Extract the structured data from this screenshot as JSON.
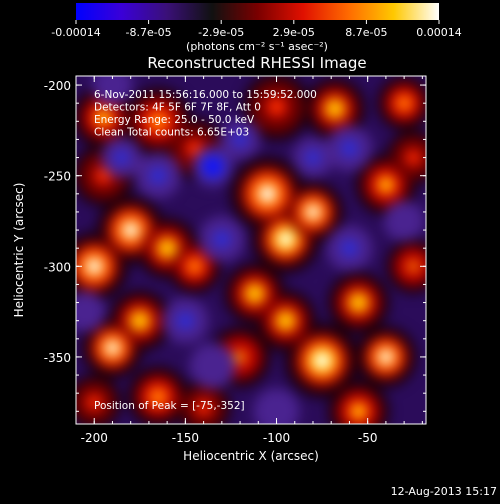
{
  "colorbar": {
    "tick_labels": [
      "-0.00014",
      "-8.7e-05",
      "-2.9e-05",
      "2.9e-05",
      "8.7e-05",
      "0.00014"
    ],
    "unit_label": "(photons cm⁻² s⁻¹ asec⁻²)",
    "colors": [
      "#0000ff",
      "#3a00d8",
      "#3a1078",
      "#111111",
      "#7a0000",
      "#e01000",
      "#ff6a00",
      "#ffc800",
      "#ffffff"
    ]
  },
  "chart_data": {
    "type": "heatmap",
    "title": "Reconstructed RHESSI Image",
    "xlabel": "Heliocentric X (arcsec)",
    "ylabel": "Heliocentric Y (arcsec)",
    "xlim": [
      -210,
      -18
    ],
    "ylim": [
      -387,
      -195
    ],
    "xticks": [
      -200,
      -150,
      -100,
      -50
    ],
    "yticks": [
      -200,
      -250,
      -300,
      -350
    ],
    "colorbar_range": [
      -0.00014,
      0.00014
    ],
    "annotations": [
      "6-Nov-2011 15:56:16.000 to 15:59:52.000",
      "Detectors: 4F 5F 6F 7F 8F, Att 0",
      "Energy Range: 25.0 - 50.0 keV",
      "Clean     Total counts: 6.65E+03"
    ],
    "peak_label": "Position of Peak = [-75,-352]",
    "peak_position": [
      -75,
      -352
    ],
    "blobs": [
      {
        "x": -195,
        "y": -218,
        "v": 0.75,
        "s": 9
      },
      {
        "x": -165,
        "y": -220,
        "v": 0.7,
        "s": 10
      },
      {
        "x": -145,
        "y": -235,
        "v": 0.5,
        "s": 9
      },
      {
        "x": -100,
        "y": -212,
        "v": 0.45,
        "s": 10
      },
      {
        "x": -68,
        "y": -213,
        "v": 0.8,
        "s": 9
      },
      {
        "x": -30,
        "y": -210,
        "v": 0.7,
        "s": 8
      },
      {
        "x": -40,
        "y": -255,
        "v": 0.75,
        "s": 9
      },
      {
        "x": -25,
        "y": -240,
        "v": 0.55,
        "s": 8
      },
      {
        "x": -195,
        "y": -250,
        "v": 0.45,
        "s": 9
      },
      {
        "x": -180,
        "y": -280,
        "v": 0.95,
        "s": 10
      },
      {
        "x": -200,
        "y": -300,
        "v": 0.9,
        "s": 10
      },
      {
        "x": -160,
        "y": -290,
        "v": 0.85,
        "s": 9
      },
      {
        "x": -145,
        "y": -300,
        "v": 0.7,
        "s": 8
      },
      {
        "x": -105,
        "y": -260,
        "v": 0.95,
        "s": 11
      },
      {
        "x": -95,
        "y": -285,
        "v": 1.0,
        "s": 10
      },
      {
        "x": -80,
        "y": -270,
        "v": 0.9,
        "s": 9
      },
      {
        "x": -112,
        "y": -315,
        "v": 0.85,
        "s": 9
      },
      {
        "x": -120,
        "y": -350,
        "v": 0.6,
        "s": 9
      },
      {
        "x": -175,
        "y": -330,
        "v": 0.85,
        "s": 9
      },
      {
        "x": -190,
        "y": -345,
        "v": 0.9,
        "s": 9
      },
      {
        "x": -165,
        "y": -372,
        "v": 0.7,
        "s": 9
      },
      {
        "x": -75,
        "y": -352,
        "v": 1.0,
        "s": 11
      },
      {
        "x": -95,
        "y": -330,
        "v": 0.8,
        "s": 9
      },
      {
        "x": -55,
        "y": -320,
        "v": 0.85,
        "s": 9
      },
      {
        "x": -40,
        "y": -350,
        "v": 0.9,
        "s": 9
      },
      {
        "x": -55,
        "y": -380,
        "v": 0.75,
        "s": 9
      },
      {
        "x": -25,
        "y": -300,
        "v": 0.6,
        "s": 8
      },
      {
        "x": -140,
        "y": -378,
        "v": 0.5,
        "s": 8
      },
      {
        "x": -200,
        "y": -375,
        "v": 0.55,
        "s": 8
      },
      {
        "x": -135,
        "y": -245,
        "v": -0.9,
        "s": 8
      },
      {
        "x": -120,
        "y": -230,
        "v": -0.6,
        "s": 8
      },
      {
        "x": -185,
        "y": -240,
        "v": -0.5,
        "s": 8
      },
      {
        "x": -165,
        "y": -250,
        "v": -0.4,
        "s": 9
      },
      {
        "x": -60,
        "y": -235,
        "v": -0.45,
        "s": 9
      },
      {
        "x": -80,
        "y": -240,
        "v": -0.5,
        "s": 8
      },
      {
        "x": -150,
        "y": -330,
        "v": -0.5,
        "s": 9
      },
      {
        "x": -135,
        "y": -355,
        "v": -0.35,
        "s": 9
      },
      {
        "x": -100,
        "y": -380,
        "v": -0.3,
        "s": 9
      },
      {
        "x": -60,
        "y": -290,
        "v": -0.4,
        "s": 9
      },
      {
        "x": -30,
        "y": -275,
        "v": -0.35,
        "s": 8
      },
      {
        "x": -205,
        "y": -325,
        "v": -0.35,
        "s": 8
      },
      {
        "x": -130,
        "y": -285,
        "v": -0.45,
        "s": 9
      },
      {
        "x": -190,
        "y": -200,
        "v": -0.3,
        "s": 8
      }
    ]
  },
  "timestamp": "12-Aug-2013 15:17"
}
